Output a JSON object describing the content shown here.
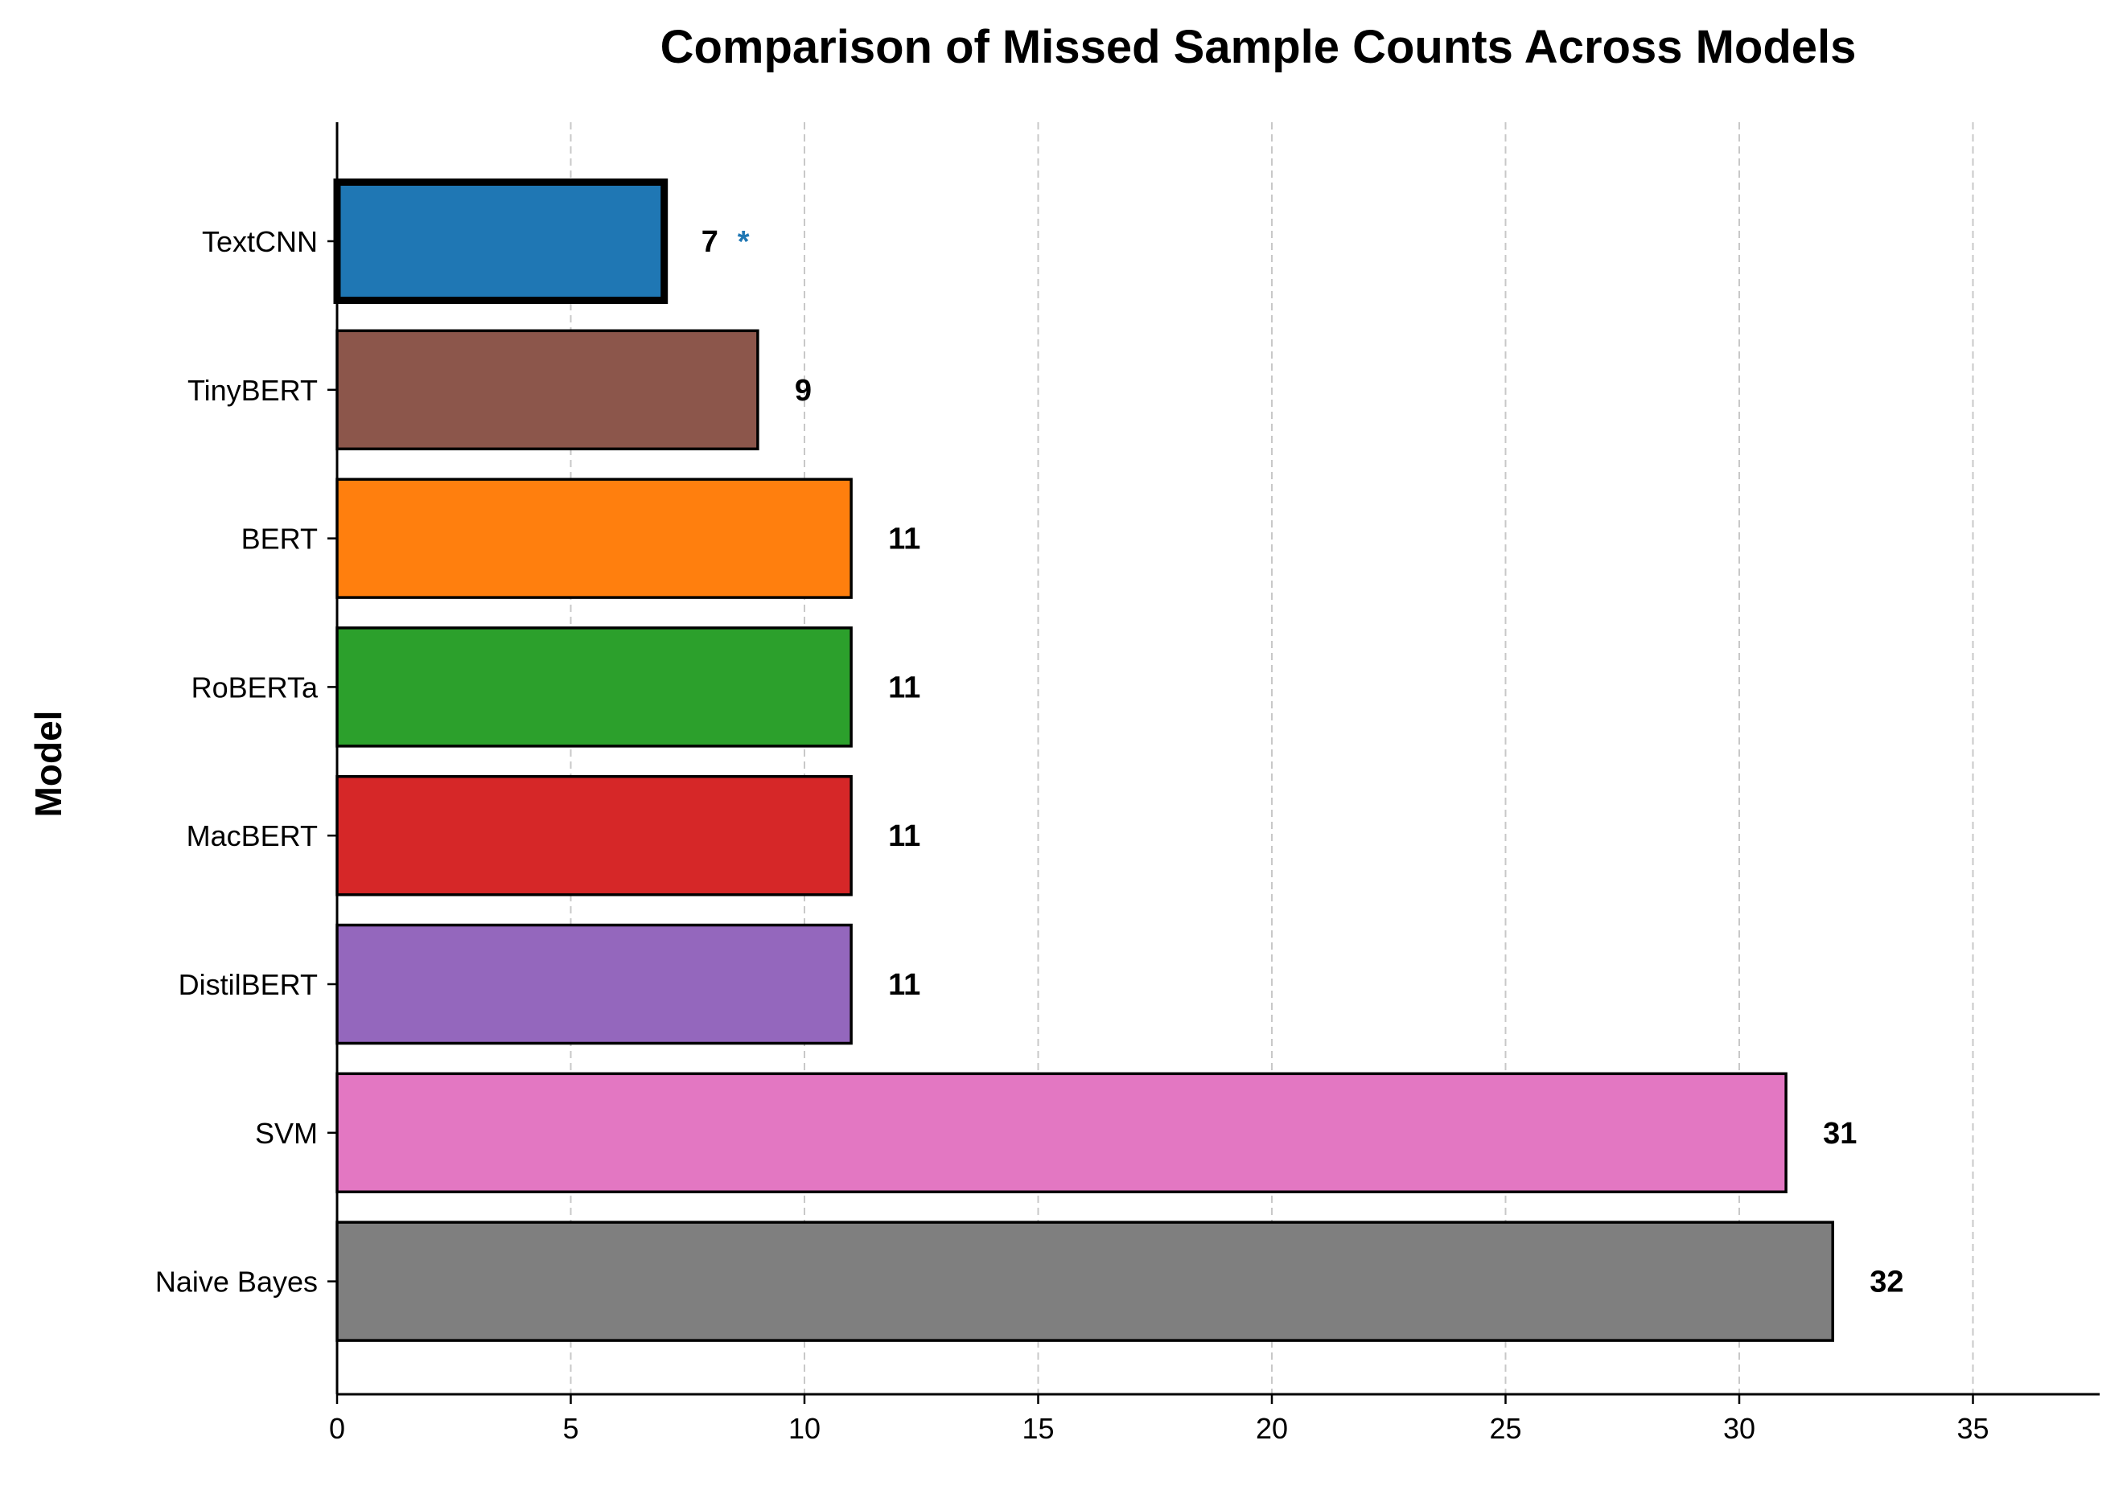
{
  "chart_data": {
    "type": "bar",
    "orientation": "horizontal",
    "title": "Comparison of Missed Sample Counts Across Models",
    "xlabel": "",
    "ylabel": "Model",
    "xlim": [
      0,
      37.8
    ],
    "xticks": [
      0,
      5,
      10,
      15,
      20,
      25,
      30,
      35
    ],
    "grid": "x-dashed",
    "categories": [
      "TextCNN",
      "TinyBERT",
      "BERT",
      "RoBERTa",
      "MacBERT",
      "DistilBERT",
      "SVM",
      "Naive Bayes"
    ],
    "values": [
      7,
      9,
      11,
      11,
      11,
      11,
      31,
      32
    ],
    "colors": [
      "#1f77b4",
      "#8c564b",
      "#ff7f0e",
      "#2ca02c",
      "#d62728",
      "#9467bd",
      "#e377c2",
      "#7f7f7f"
    ],
    "highlight": {
      "category": "TextCNN",
      "marker": "*",
      "marker_color": "#1f77b4"
    }
  }
}
